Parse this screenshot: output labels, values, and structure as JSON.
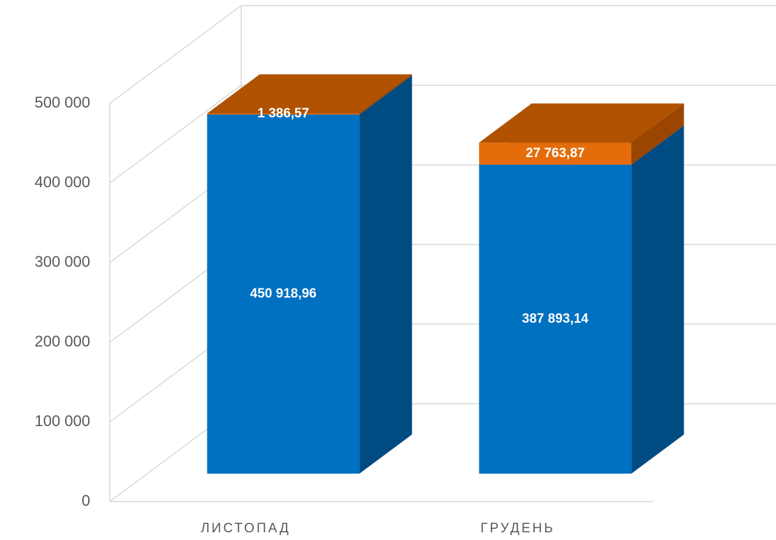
{
  "chart_data": {
    "type": "bar3d_stacked",
    "categories": [
      "ЛИСТОПАД",
      "ГРУДЕНЬ"
    ],
    "series": [
      {
        "color": "#0070c0",
        "side_color": "#004b82",
        "top_color": "#005a9a",
        "values": [
          450918.96,
          387893.14
        ],
        "value_labels": [
          "450 918,96",
          "387 893,14"
        ]
      },
      {
        "color": "#e46c0a",
        "side_color": "#9a4600",
        "top_color": "#b05200",
        "values": [
          1386.57,
          27763.87
        ],
        "value_labels": [
          "1 386,57",
          "27 763,87"
        ]
      }
    ],
    "ylim": [
      0,
      500000
    ],
    "yticks": [
      0,
      {
        "value": 100000,
        "label": "100 000"
      },
      {
        "value": 200000,
        "label": "200 000"
      },
      {
        "value": 300000,
        "label": "300 000"
      },
      {
        "value": 400000,
        "label": "400 000"
      },
      {
        "value": 500000,
        "label": "500 000"
      }
    ],
    "grid": true
  }
}
